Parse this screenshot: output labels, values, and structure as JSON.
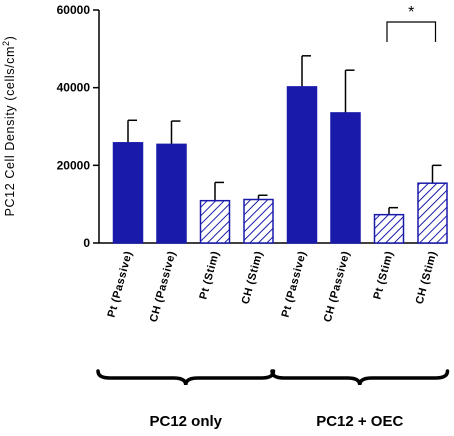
{
  "chart_data": {
    "type": "bar",
    "ylabel_main": "PC12 Cell Density (cells/cm",
    "ylabel_sup": "2",
    "ylabel_end": ")",
    "ylim": [
      0,
      60000
    ],
    "yticks": [
      "0",
      "20000",
      "40000",
      "60000"
    ],
    "ytick_values": [
      0,
      20000,
      40000,
      60000
    ],
    "categories": [
      "Pt (Passive)",
      "CH (Passive)",
      "Pt (Stim)",
      "CH (Stim)",
      "Pt (Passive)",
      "CH (Passive)",
      "Pt (Stim)",
      "CH (Stim)"
    ],
    "values": [
      25800,
      25400,
      10900,
      11200,
      40200,
      33500,
      7300,
      15400
    ],
    "error": [
      5800,
      6000,
      4700,
      1100,
      8000,
      11000,
      1800,
      4600
    ],
    "fill": [
      "solid",
      "solid",
      "hatched",
      "hatched",
      "solid",
      "solid",
      "hatched",
      "hatched"
    ],
    "groups": [
      {
        "label": "PC12 only",
        "categories": [
          0,
          1,
          2,
          3
        ]
      },
      {
        "label": "PC12 + OEC",
        "categories": [
          4,
          5,
          6,
          7
        ]
      }
    ],
    "significance": {
      "between": [
        6,
        7
      ],
      "label": "*"
    },
    "colors": {
      "bar": "#1a1aaa",
      "axis": "#000000"
    }
  }
}
